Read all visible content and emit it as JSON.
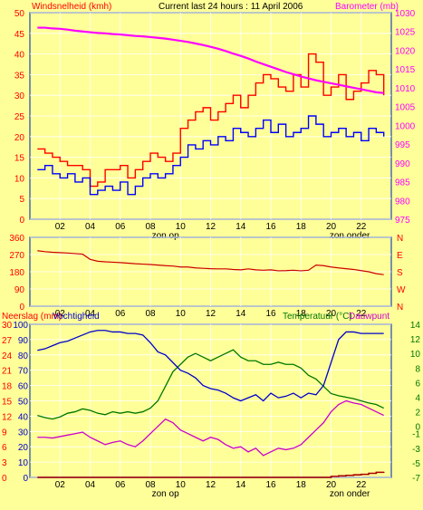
{
  "header": {
    "left_title": "Windsnelheid (kmh)",
    "center_title": "Current last 24 hours : 11 April 2006",
    "right_title": "Barometer (mb)"
  },
  "colors": {
    "background": "#ffff99",
    "border": "#4a6ab0",
    "gust": "#ff0000",
    "speed": "#0000ff",
    "barometer": "#ff00ff",
    "direction": "#cc0000",
    "humidity": "#0000cc",
    "temperature": "#007700",
    "dewpoint": "#cc00cc",
    "rain": "#aa0000",
    "grid": "#ffffff",
    "axis_text": "#ff0000",
    "axis_text_right_bottom": "#007700",
    "axis_text_left_bottom": "#ff0000",
    "tick_text": "#000000"
  },
  "x_axis": {
    "ticks": [
      "02",
      "04",
      "06",
      "08",
      "10",
      "12",
      "14",
      "16",
      "18",
      "20",
      "22"
    ],
    "sunrise_label": "zon op",
    "sunset_label": "zon onder"
  },
  "chart_data": [
    {
      "type": "line",
      "name": "wind-and-barometer",
      "x": [
        0.5,
        1,
        1.5,
        2,
        2.5,
        3,
        3.5,
        4,
        4.5,
        5,
        5.5,
        6,
        6.5,
        7,
        7.5,
        8,
        8.5,
        9,
        9.5,
        10,
        10.5,
        11,
        11.5,
        12,
        12.5,
        13,
        13.5,
        14,
        14.5,
        15,
        15.5,
        16,
        16.5,
        17,
        17.5,
        18,
        18.5,
        19,
        19.5,
        20,
        20.5,
        21,
        21.5,
        22,
        22.5,
        23,
        23.5
      ],
      "series": [
        {
          "name": "gust",
          "axis": "left",
          "values": [
            17,
            16,
            15,
            14,
            13,
            13,
            12,
            8,
            9,
            12,
            12,
            13,
            10,
            12,
            14,
            16,
            15,
            14,
            16,
            22,
            24,
            26,
            27,
            24,
            26,
            28,
            30,
            27,
            30,
            33,
            35,
            34,
            32,
            31,
            35,
            32,
            40,
            38,
            30,
            32,
            35,
            29,
            31,
            33,
            36,
            35,
            30
          ]
        },
        {
          "name": "speed",
          "axis": "left",
          "values": [
            12,
            13,
            11,
            10,
            11,
            9,
            10,
            6,
            7,
            8,
            7,
            9,
            6,
            8,
            10,
            11,
            10,
            11,
            13,
            15,
            18,
            17,
            19,
            18,
            20,
            19,
            22,
            21,
            20,
            22,
            24,
            21,
            23,
            20,
            21,
            22,
            25,
            23,
            20,
            21,
            22,
            20,
            21,
            19,
            22,
            21,
            20
          ]
        },
        {
          "name": "barometer",
          "axis": "right",
          "values": [
            1026,
            1026,
            1025.8,
            1025.7,
            1025.5,
            1025.2,
            1025,
            1024.8,
            1024.6,
            1024.5,
            1024.3,
            1024.2,
            1024,
            1023.8,
            1023.7,
            1023.5,
            1023.3,
            1023.1,
            1022.8,
            1022.5,
            1022.2,
            1021.8,
            1021.4,
            1020.9,
            1020.4,
            1019.8,
            1019.1,
            1018.5,
            1017.8,
            1017,
            1016.3,
            1015.6,
            1014.9,
            1014.2,
            1013.6,
            1013,
            1012.5,
            1012,
            1011.6,
            1011.2,
            1010.8,
            1010.4,
            1010,
            1009.6,
            1009.2,
            1008.8,
            1008.6
          ]
        }
      ],
      "xlim": [
        0,
        24
      ],
      "ylim_left": [
        0,
        50
      ],
      "yticks_left": [
        0,
        5,
        10,
        15,
        20,
        25,
        30,
        35,
        40,
        45,
        50
      ],
      "ylim_right": [
        975,
        1030
      ],
      "yticks_right": [
        975,
        980,
        985,
        990,
        995,
        1000,
        1005,
        1010,
        1015,
        1020,
        1025,
        1030
      ],
      "sunrise_x": 9,
      "sunset_x": 21
    },
    {
      "type": "line",
      "name": "wind-direction",
      "x": [
        0.5,
        1,
        1.5,
        2,
        2.5,
        3,
        3.5,
        4,
        4.5,
        5,
        5.5,
        6,
        6.5,
        7,
        7.5,
        8,
        8.5,
        9,
        9.5,
        10,
        10.5,
        11,
        11.5,
        12,
        12.5,
        13,
        13.5,
        14,
        14.5,
        15,
        15.5,
        16,
        16.5,
        17,
        17.5,
        18,
        18.5,
        19,
        19.5,
        20,
        20.5,
        21,
        21.5,
        22,
        22.5,
        23,
        23.5
      ],
      "series": [
        {
          "name": "direction",
          "values": [
            290,
            285,
            282,
            280,
            278,
            275,
            272,
            245,
            235,
            232,
            230,
            228,
            225,
            222,
            220,
            218,
            215,
            212,
            210,
            205,
            205,
            200,
            198,
            196,
            195,
            195,
            192,
            190,
            195,
            190,
            188,
            190,
            185,
            186,
            188,
            185,
            188,
            215,
            212,
            205,
            200,
            196,
            192,
            186,
            180,
            170,
            165
          ]
        }
      ],
      "xlim": [
        0,
        24
      ],
      "ylim": [
        0,
        360
      ],
      "yticks_left": [
        0,
        90,
        180,
        270,
        360
      ],
      "yticks_left_labels": [
        "0",
        "90",
        "180",
        "270",
        "360"
      ],
      "right_labels": [
        "N",
        "W",
        "S",
        "E",
        "N"
      ]
    },
    {
      "type": "line",
      "name": "humidity-temperature-rain",
      "title_left_rain": "Neerslag (mm)",
      "title_left_humidity": "Vochtigheid",
      "title_right_temp": "Temperatuur (°C)",
      "title_right_dew": "Dauwpunt",
      "x": [
        0.5,
        1,
        1.5,
        2,
        2.5,
        3,
        3.5,
        4,
        4.5,
        5,
        5.5,
        6,
        6.5,
        7,
        7.5,
        8,
        8.5,
        9,
        9.5,
        10,
        10.5,
        11,
        11.5,
        12,
        12.5,
        13,
        13.5,
        14,
        14.5,
        15,
        15.5,
        16,
        16.5,
        17,
        17.5,
        18,
        18.5,
        19,
        19.5,
        20,
        20.5,
        21,
        21.5,
        22,
        22.5,
        23,
        23.5
      ],
      "series": [
        {
          "name": "humidity",
          "axis": "left_h",
          "values": [
            83,
            84,
            86,
            88,
            89,
            91,
            93,
            95,
            96,
            96,
            95,
            95,
            94,
            94,
            93,
            88,
            82,
            80,
            75,
            70,
            68,
            65,
            60,
            58,
            57,
            55,
            52,
            50,
            52,
            54,
            50,
            55,
            52,
            53,
            55,
            52,
            55,
            54,
            60,
            75,
            90,
            95,
            95,
            94,
            94,
            94,
            94
          ]
        },
        {
          "name": "temperature",
          "axis": "right_t",
          "values": [
            1.5,
            1.2,
            1.0,
            1.3,
            1.8,
            2.0,
            2.4,
            2.2,
            1.8,
            1.6,
            2.0,
            1.8,
            2.0,
            1.8,
            2.0,
            2.5,
            3.5,
            5.5,
            7.5,
            8.5,
            9.5,
            10,
            9.5,
            9.0,
            9.5,
            10,
            10.5,
            9.5,
            9.0,
            9.0,
            8.5,
            8.5,
            8.8,
            8.5,
            8.5,
            8.0,
            7.0,
            6.5,
            5.5,
            4.5,
            4.2,
            4.0,
            3.8,
            3.5,
            3.2,
            3.0,
            2.5
          ]
        },
        {
          "name": "dewpoint",
          "axis": "right_t",
          "values": [
            -1.5,
            -1.5,
            -1.6,
            -1.4,
            -1.2,
            -1.0,
            -0.8,
            -1.5,
            -2.0,
            -2.5,
            -2.2,
            -2.0,
            -2.5,
            -2.8,
            -2.0,
            -1.0,
            0,
            1.0,
            0.5,
            -0.5,
            -1.0,
            -1.5,
            -2.0,
            -1.5,
            -1.8,
            -2.5,
            -3.0,
            -2.8,
            -3.5,
            -3.0,
            -4.0,
            -3.5,
            -3.0,
            -3.2,
            -3.0,
            -2.5,
            -1.5,
            -0.5,
            0.5,
            2.0,
            3.0,
            3.5,
            3.2,
            3.0,
            2.5,
            2.0,
            1.5
          ]
        },
        {
          "name": "rain",
          "axis": "left_r",
          "values": [
            0,
            0,
            0,
            0,
            0,
            0,
            0,
            0,
            0,
            0,
            0,
            0,
            0,
            0,
            0,
            0,
            0,
            0,
            0,
            0,
            0,
            0,
            0,
            0,
            0,
            0,
            0,
            0,
            0,
            0,
            0,
            0,
            0,
            0,
            0,
            0,
            0,
            0,
            0,
            0.2,
            0.3,
            0.4,
            0.5,
            0.6,
            0.8,
            1.0,
            1.1
          ]
        }
      ],
      "xlim": [
        0,
        24
      ],
      "ylim_left_rain": [
        0,
        30
      ],
      "yticks_left_rain": [
        0,
        3,
        6,
        9,
        12,
        15,
        18,
        21,
        24,
        27,
        30
      ],
      "ylim_left_humidity": [
        0,
        100
      ],
      "yticks_left_humidity": [
        0,
        10,
        20,
        30,
        40,
        50,
        60,
        70,
        80,
        90,
        100
      ],
      "ylim_right": [
        -7,
        14
      ],
      "yticks_right": [
        -7,
        -5,
        -3,
        -1,
        0,
        2,
        4,
        6,
        8,
        10,
        12,
        14
      ],
      "sunrise_x": 9,
      "sunset_x": 21
    }
  ]
}
